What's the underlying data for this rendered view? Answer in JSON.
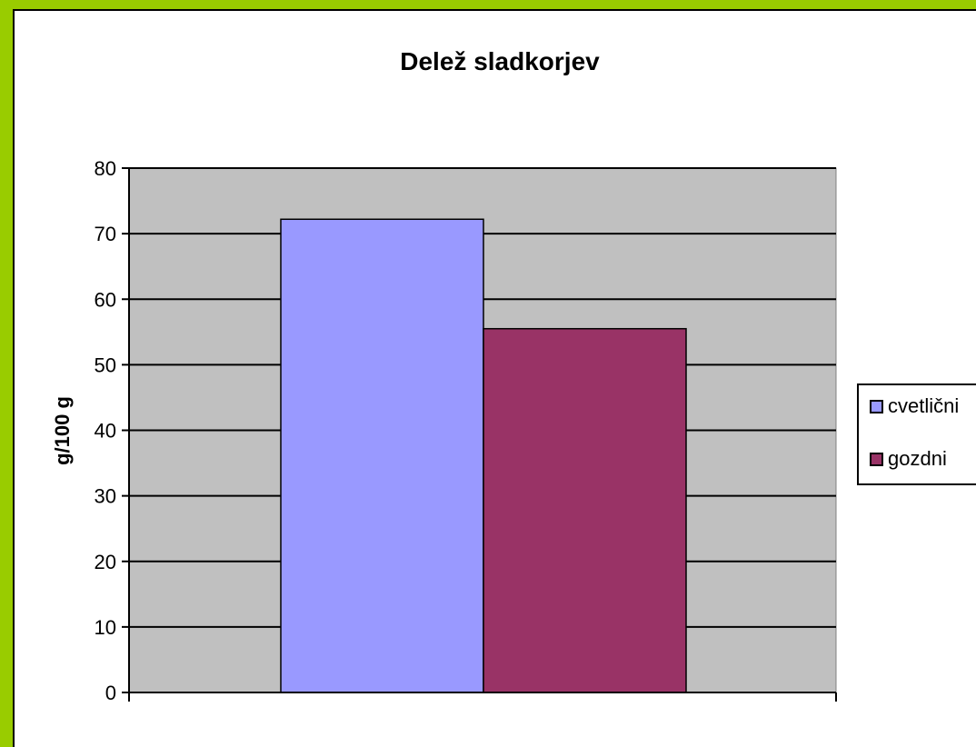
{
  "chart_data": {
    "type": "bar",
    "title": "Delež sladkorjev",
    "xlabel": "",
    "ylabel": "g/100 g",
    "categories": [
      ""
    ],
    "series": [
      {
        "name": "cvetlični",
        "values": [
          72.2
        ],
        "color": "#9999ff"
      },
      {
        "name": "gozdni",
        "values": [
          55.5
        ],
        "color": "#993366"
      }
    ],
    "ylim": [
      0,
      80
    ],
    "yticks": [
      0,
      10,
      20,
      30,
      40,
      50,
      60,
      70,
      80
    ],
    "grid": true,
    "plot_background": "#c0c0c0",
    "legend_position": "right"
  },
  "colors": {
    "border": "#99cc00"
  }
}
